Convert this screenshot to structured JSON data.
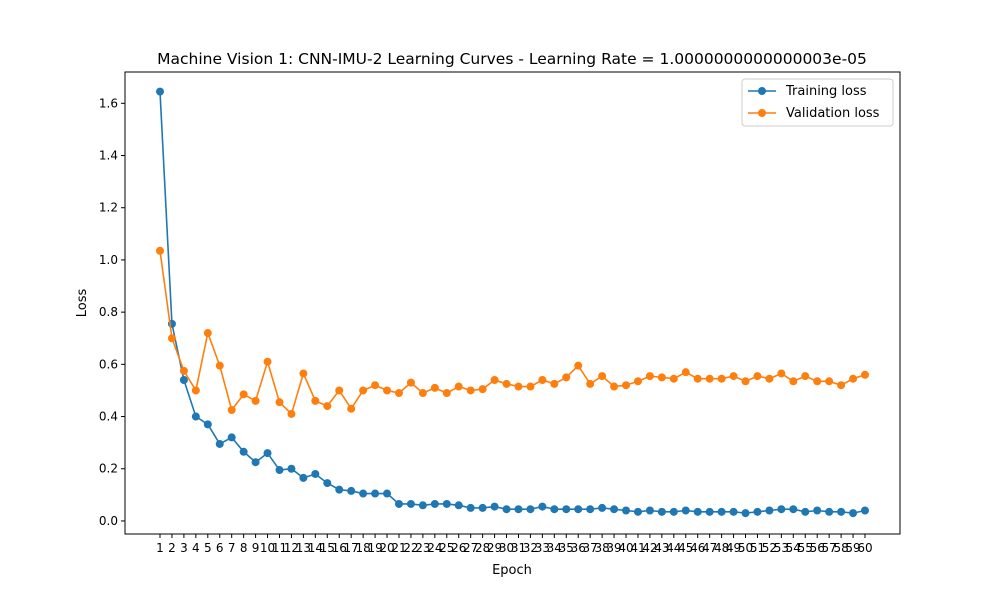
{
  "chart_data": {
    "type": "line",
    "title": "Machine Vision 1: CNN-IMU-2 Learning Curves - Learning Rate = 1.0000000000000003e-05",
    "xlabel": "Epoch",
    "ylabel": "Loss",
    "ylim": [
      -0.05,
      1.72
    ],
    "yticks": [
      0.0,
      0.2,
      0.4,
      0.6,
      0.8,
      1.0,
      1.2,
      1.4,
      1.6
    ],
    "ytick_labels": [
      "0.0",
      "0.2",
      "0.4",
      "0.6",
      "0.8",
      "1.0",
      "1.2",
      "1.4",
      "1.6"
    ],
    "grid": false,
    "legend_position": "top-right",
    "x": [
      1,
      2,
      3,
      4,
      5,
      6,
      7,
      8,
      9,
      10,
      11,
      12,
      13,
      14,
      15,
      16,
      17,
      18,
      19,
      20,
      21,
      22,
      23,
      24,
      25,
      26,
      27,
      28,
      29,
      30,
      31,
      32,
      33,
      34,
      35,
      36,
      37,
      38,
      39,
      40,
      41,
      42,
      43,
      44,
      45,
      46,
      47,
      48,
      49,
      50,
      51,
      52,
      53,
      54,
      55,
      56,
      57,
      58,
      59,
      60
    ],
    "series": [
      {
        "name": "Training loss",
        "color": "#1f77b4",
        "values": [
          1.645,
          0.755,
          0.54,
          0.4,
          0.37,
          0.295,
          0.32,
          0.265,
          0.225,
          0.26,
          0.195,
          0.2,
          0.165,
          0.18,
          0.145,
          0.12,
          0.115,
          0.105,
          0.105,
          0.105,
          0.065,
          0.065,
          0.06,
          0.065,
          0.065,
          0.06,
          0.05,
          0.05,
          0.055,
          0.045,
          0.045,
          0.045,
          0.055,
          0.045,
          0.045,
          0.045,
          0.045,
          0.05,
          0.045,
          0.04,
          0.035,
          0.04,
          0.035,
          0.035,
          0.04,
          0.035,
          0.035,
          0.035,
          0.035,
          0.03,
          0.035,
          0.04,
          0.045,
          0.045,
          0.035,
          0.04,
          0.035,
          0.035,
          0.03,
          0.04
        ]
      },
      {
        "name": "Validation loss",
        "color": "#ff7f0e",
        "values": [
          1.035,
          0.7,
          0.575,
          0.5,
          0.72,
          0.595,
          0.425,
          0.485,
          0.46,
          0.61,
          0.455,
          0.41,
          0.565,
          0.46,
          0.44,
          0.5,
          0.43,
          0.5,
          0.52,
          0.5,
          0.49,
          0.53,
          0.49,
          0.51,
          0.49,
          0.515,
          0.5,
          0.505,
          0.54,
          0.525,
          0.515,
          0.515,
          0.54,
          0.525,
          0.55,
          0.595,
          0.525,
          0.555,
          0.515,
          0.52,
          0.535,
          0.555,
          0.55,
          0.545,
          0.57,
          0.545,
          0.545,
          0.545,
          0.555,
          0.535,
          0.555,
          0.545,
          0.565,
          0.535,
          0.555,
          0.535,
          0.535,
          0.52,
          0.545,
          0.56
        ]
      }
    ]
  }
}
